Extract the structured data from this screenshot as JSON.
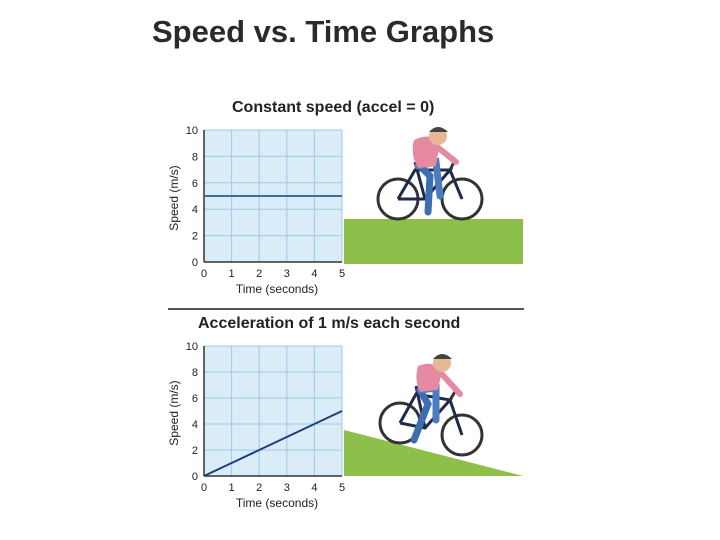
{
  "slide": {
    "title": "Speed vs. Time Graphs"
  },
  "colors": {
    "grid_bg": "#d9ecf7",
    "grid_line": "#9ccbe6",
    "line1": "#3a6ea5",
    "line2": "#1f3f7a",
    "ground": "#8dbf4a"
  },
  "illustration": {
    "rider": "cyclist-on-bicycle",
    "scene1": "flat-ground",
    "scene2": "downhill-slope"
  },
  "chart_data": [
    {
      "type": "line",
      "title": "Constant speed (accel = 0)",
      "xlabel": "Time (seconds)",
      "ylabel": "Speed (m/s)",
      "xlim": [
        0,
        5
      ],
      "ylim": [
        0,
        10
      ],
      "x_ticks": [
        0,
        1,
        2,
        3,
        4,
        5
      ],
      "y_ticks": [
        0,
        2,
        4,
        6,
        8,
        10
      ],
      "grid": true,
      "series": [
        {
          "x": [
            0,
            5
          ],
          "y": [
            5,
            5
          ]
        }
      ]
    },
    {
      "type": "line",
      "title": "Acceleration of 1 m/s each second",
      "xlabel": "Time (seconds)",
      "ylabel": "Speed (m/s)",
      "xlim": [
        0,
        5
      ],
      "ylim": [
        0,
        10
      ],
      "x_ticks": [
        0,
        1,
        2,
        3,
        4,
        5
      ],
      "y_ticks": [
        0,
        2,
        4,
        6,
        8,
        10
      ],
      "grid": true,
      "series": [
        {
          "x": [
            0,
            1,
            2,
            3,
            4,
            5
          ],
          "y": [
            0,
            1,
            2,
            3,
            4,
            5
          ]
        }
      ]
    }
  ]
}
